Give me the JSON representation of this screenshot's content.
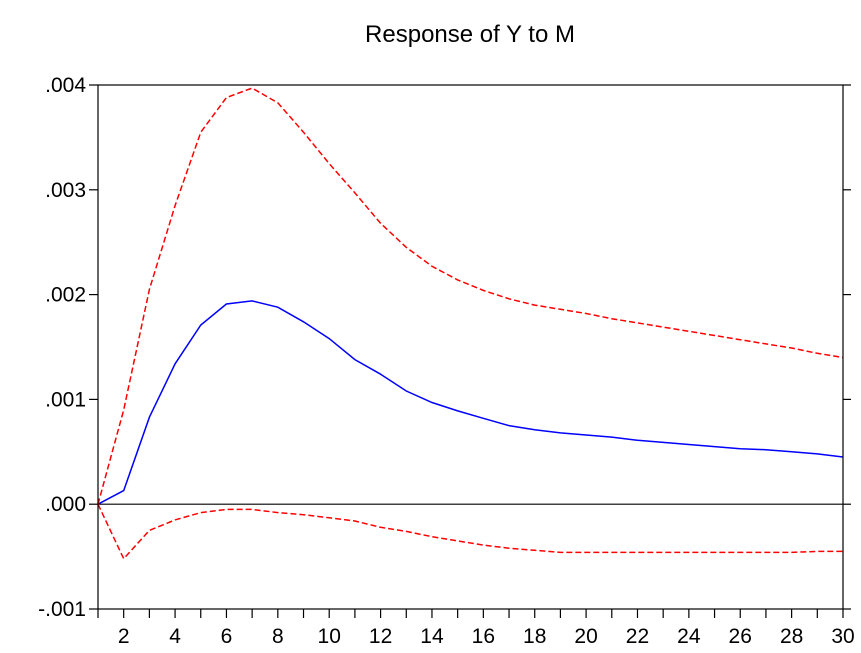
{
  "chart_data": {
    "type": "line",
    "title": "Response of Y to M",
    "xlabel": "",
    "ylabel": "",
    "xlim": [
      1,
      30
    ],
    "ylim": [
      -0.001,
      0.004
    ],
    "x": [
      1,
      2,
      3,
      4,
      5,
      6,
      7,
      8,
      9,
      10,
      11,
      12,
      13,
      14,
      15,
      16,
      17,
      18,
      19,
      20,
      21,
      22,
      23,
      24,
      25,
      26,
      27,
      28,
      29,
      30
    ],
    "x_tick_values": [
      2,
      4,
      6,
      8,
      10,
      12,
      14,
      16,
      18,
      20,
      22,
      24,
      26,
      28,
      30
    ],
    "x_tick_labels": [
      "2",
      "4",
      "6",
      "8",
      "10",
      "12",
      "14",
      "16",
      "18",
      "20",
      "22",
      "24",
      "26",
      "28",
      "30"
    ],
    "y_tick_values": [
      -0.001,
      0.0,
      0.001,
      0.002,
      0.003,
      0.004
    ],
    "y_tick_labels": [
      "-.001",
      ".000",
      ".001",
      ".002",
      ".003",
      ".004"
    ],
    "grid": false,
    "zero_line": true,
    "series": [
      {
        "role": "response",
        "color": "#0000ff",
        "dash": "solid",
        "values": [
          0.0,
          0.00013,
          0.00083,
          0.00134,
          0.00171,
          0.00191,
          0.00194,
          0.00188,
          0.00174,
          0.00158,
          0.00138,
          0.00124,
          0.00108,
          0.00097,
          0.00089,
          0.00082,
          0.00075,
          0.00071,
          0.00068,
          0.00066,
          0.00064,
          0.00061,
          0.00059,
          0.00057,
          0.00055,
          0.00053,
          0.00052,
          0.0005,
          0.00048,
          0.00045
        ]
      },
      {
        "role": "upper-band",
        "color": "#ff0000",
        "dash": "dashed",
        "values": [
          0.0,
          0.0009,
          0.00205,
          0.00285,
          0.00355,
          0.00388,
          0.00397,
          0.00383,
          0.00355,
          0.00325,
          0.00297,
          0.00268,
          0.00245,
          0.00227,
          0.00214,
          0.00204,
          0.00196,
          0.0019,
          0.00186,
          0.00182,
          0.00177,
          0.00173,
          0.00169,
          0.00165,
          0.00161,
          0.00157,
          0.00153,
          0.00149,
          0.00144,
          0.0014
        ]
      },
      {
        "role": "lower-band",
        "color": "#ff0000",
        "dash": "dashed",
        "values": [
          0.0,
          -0.00052,
          -0.00025,
          -0.00015,
          -8e-05,
          -5e-05,
          -5e-05,
          -8e-05,
          -0.0001,
          -0.00013,
          -0.00016,
          -0.00022,
          -0.00026,
          -0.00031,
          -0.00035,
          -0.00039,
          -0.00042,
          -0.00044,
          -0.00046,
          -0.00046,
          -0.00046,
          -0.00046,
          -0.00046,
          -0.00046,
          -0.00046,
          -0.00046,
          -0.00046,
          -0.00046,
          -0.00045,
          -0.00045
        ]
      }
    ]
  }
}
